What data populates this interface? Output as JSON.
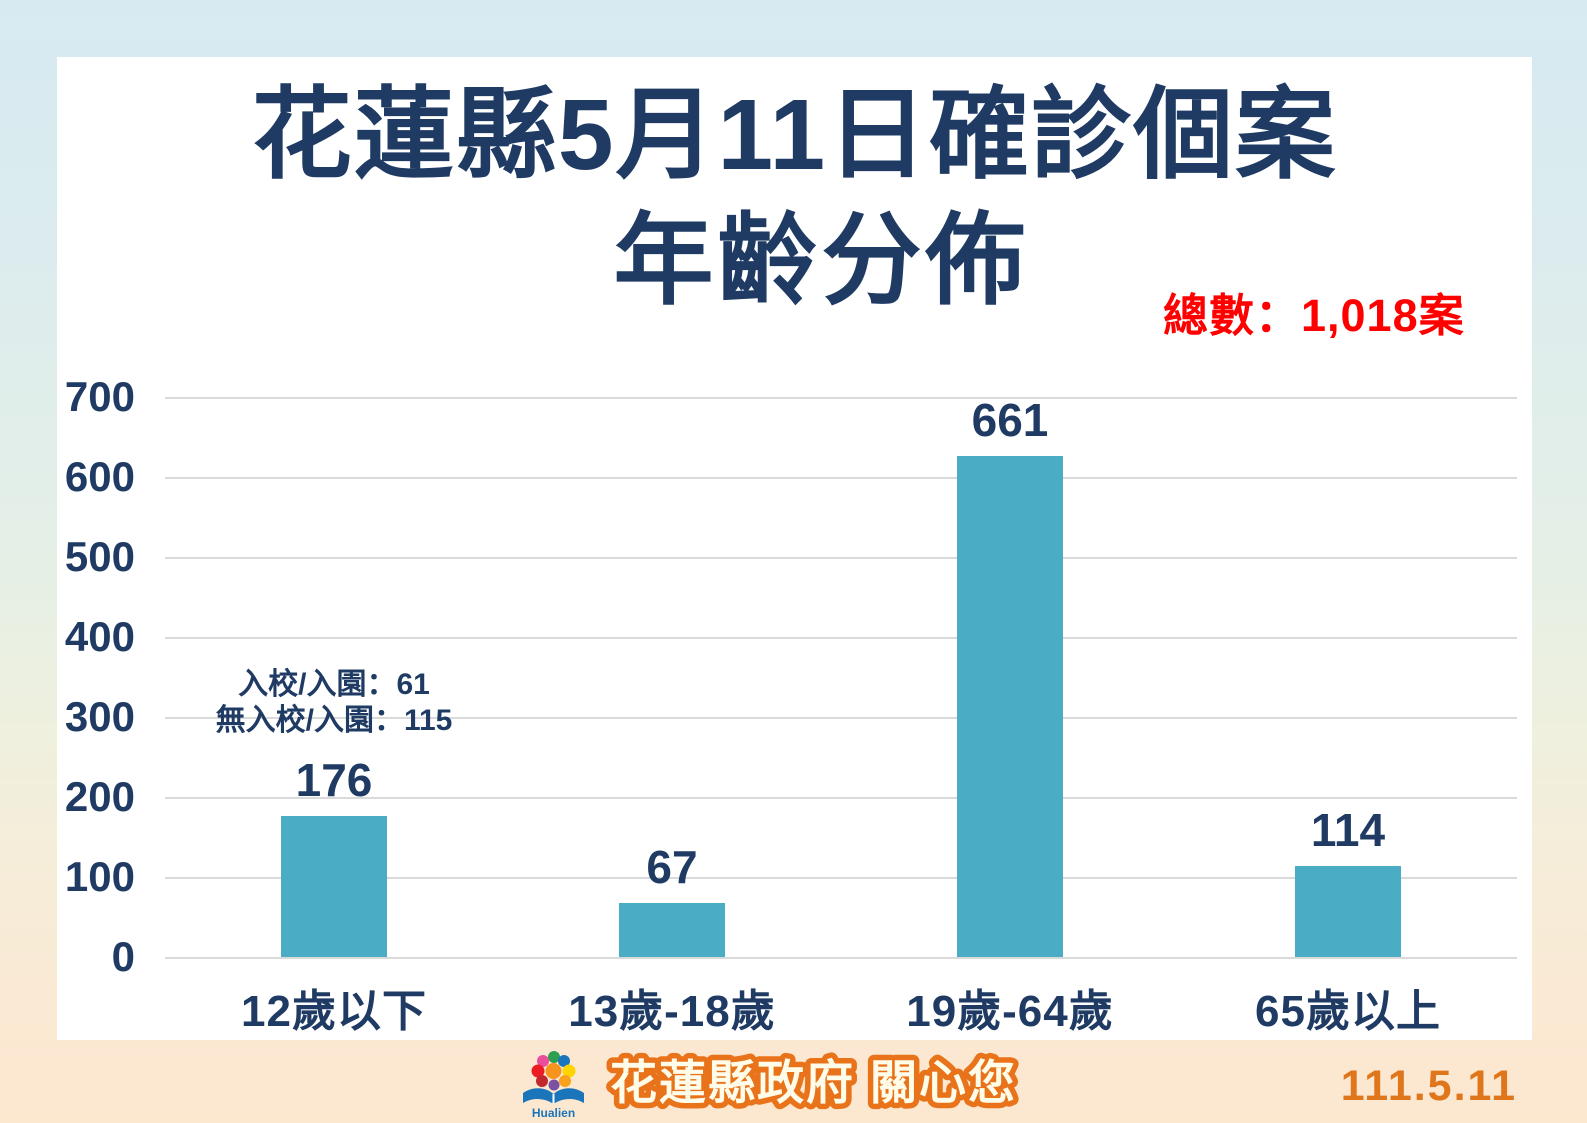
{
  "title": {
    "line1": "花蓮縣5月11日確診個案",
    "line2": "年齡分佈"
  },
  "total_label": "總數：1,018案",
  "footer": {
    "gov_label": "花蓮縣政府 關心您",
    "logo_text": "Hualien",
    "date": "111.5.11"
  },
  "colors": {
    "bar": "#4bacc6",
    "navy_text": "#1f3b64",
    "total_red": "#ff0000",
    "footer_orange": "#e8731a",
    "date_orange": "#e0761c",
    "gridline": "#dadada",
    "card_bg": "#ffffff"
  },
  "chart_data": {
    "type": "bar",
    "title": "花蓮縣5月11日確診個案 年齡分佈",
    "categories": [
      "12歲以下",
      "13歲-18歲",
      "19歲-64歲",
      "65歲以上"
    ],
    "values": [
      176,
      67,
      661,
      114
    ],
    "total": 1018,
    "xlabel": "",
    "ylabel": "",
    "ylim": [
      0,
      700
    ],
    "yticks": [
      0,
      100,
      200,
      300,
      400,
      500,
      600,
      700
    ],
    "grid": true,
    "legend": false,
    "annotations": [
      {
        "category_index": 0,
        "lines": [
          "入校/入園：61",
          "無入校/入園：115"
        ]
      }
    ]
  }
}
